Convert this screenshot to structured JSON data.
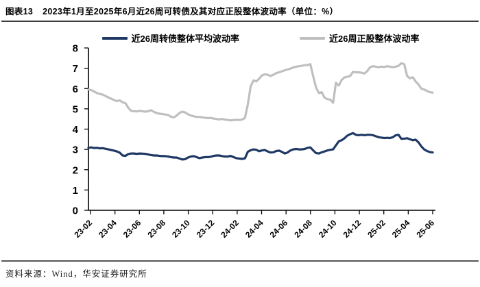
{
  "figure": {
    "label": "图表13",
    "title": "2023年1月至2025年6月近26周可转债及其对应正股整体波动率（单位：%）",
    "source": "资料来源：Wind，华安证券研究所"
  },
  "chart_data": {
    "type": "line",
    "title": "近26周可转债及其对应正股整体波动率",
    "unit": "%",
    "ylim": [
      0,
      8
    ],
    "y_ticks": [
      0,
      1,
      2,
      3,
      4,
      5,
      6,
      7,
      8
    ],
    "grid": false,
    "legend_position": "top",
    "x_tick_labels": [
      "23-02",
      "23-04",
      "23-06",
      "23-08",
      "23-10",
      "23-12",
      "24-02",
      "24-04",
      "24-06",
      "24-08",
      "24-10",
      "24-12",
      "25-02",
      "25-04",
      "25-06"
    ],
    "x_note": "weekly observations, Jan 2023 - Jun 2025",
    "axis_color": "#000000",
    "series": [
      {
        "name": "近26周转债整体平均波动率",
        "color": "#1f3864",
        "values": [
          3.08,
          3.1,
          3.07,
          3.08,
          3.05,
          3.06,
          3.03,
          3.0,
          2.97,
          2.94,
          2.9,
          2.84,
          2.7,
          2.68,
          2.77,
          2.8,
          2.8,
          2.78,
          2.8,
          2.79,
          2.78,
          2.75,
          2.72,
          2.7,
          2.7,
          2.68,
          2.67,
          2.67,
          2.65,
          2.62,
          2.6,
          2.6,
          2.55,
          2.5,
          2.52,
          2.6,
          2.65,
          2.67,
          2.62,
          2.57,
          2.6,
          2.62,
          2.62,
          2.64,
          2.68,
          2.7,
          2.7,
          2.67,
          2.65,
          2.65,
          2.68,
          2.62,
          2.57,
          2.55,
          2.53,
          2.56,
          2.88,
          2.96,
          3.0,
          2.98,
          2.91,
          2.95,
          2.97,
          2.9,
          2.85,
          2.86,
          2.92,
          2.94,
          2.88,
          2.8,
          2.85,
          2.95,
          3.0,
          3.02,
          3.0,
          3.0,
          3.02,
          3.08,
          3.1,
          2.95,
          2.82,
          2.8,
          2.86,
          2.9,
          2.95,
          2.98,
          3.0,
          3.2,
          3.4,
          3.45,
          3.55,
          3.68,
          3.75,
          3.8,
          3.72,
          3.7,
          3.72,
          3.7,
          3.72,
          3.72,
          3.7,
          3.65,
          3.6,
          3.58,
          3.56,
          3.57,
          3.56,
          3.6,
          3.7,
          3.72,
          3.52,
          3.53,
          3.55,
          3.5,
          3.45,
          3.48,
          3.35,
          3.15,
          3.0,
          2.92,
          2.87,
          2.85
        ]
      },
      {
        "name": "近26周正股整体波动率",
        "color": "#bfbfbf",
        "values": [
          5.95,
          5.92,
          5.85,
          5.78,
          5.73,
          5.7,
          5.63,
          5.56,
          5.5,
          5.43,
          5.38,
          5.42,
          5.32,
          5.28,
          5.05,
          4.9,
          4.88,
          4.87,
          4.9,
          4.88,
          4.86,
          4.88,
          4.93,
          4.85,
          4.79,
          4.76,
          4.74,
          4.72,
          4.7,
          4.61,
          4.58,
          4.66,
          4.8,
          4.86,
          4.82,
          4.73,
          4.67,
          4.63,
          4.6,
          4.6,
          4.58,
          4.56,
          4.54,
          4.55,
          4.52,
          4.5,
          4.48,
          4.5,
          4.47,
          4.45,
          4.43,
          4.45,
          4.46,
          4.45,
          4.47,
          4.55,
          5.2,
          6.1,
          6.4,
          6.35,
          6.48,
          6.65,
          6.7,
          6.68,
          6.62,
          6.68,
          6.76,
          6.8,
          6.85,
          6.9,
          6.94,
          6.98,
          7.04,
          7.08,
          7.1,
          7.12,
          7.15,
          7.16,
          7.2,
          6.6,
          6.05,
          5.78,
          5.82,
          5.55,
          5.48,
          5.45,
          5.3,
          6.28,
          6.15,
          6.42,
          6.55,
          6.58,
          6.62,
          6.82,
          6.8,
          6.8,
          6.78,
          6.74,
          6.86,
          7.05,
          7.1,
          7.08,
          7.05,
          7.08,
          7.06,
          7.1,
          7.08,
          7.05,
          7.08,
          7.12,
          7.25,
          7.2,
          6.62,
          6.5,
          6.56,
          6.35,
          6.2,
          6.0,
          5.95,
          5.88,
          5.82,
          5.8
        ]
      }
    ]
  }
}
